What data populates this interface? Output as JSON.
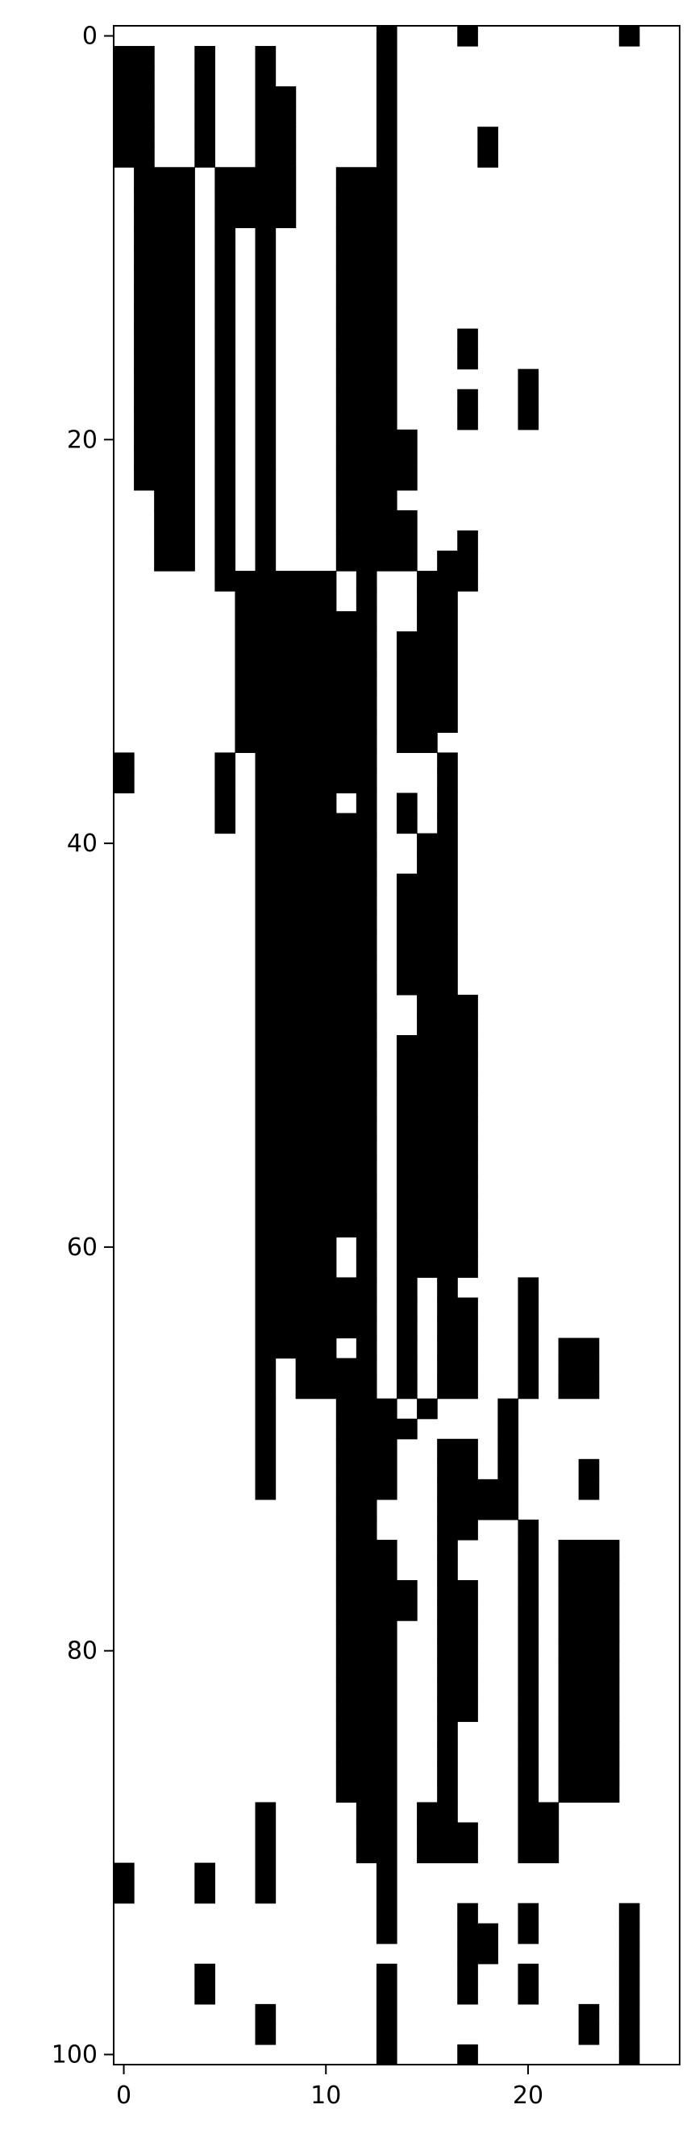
{
  "chart_data": {
    "type": "heatmap",
    "colormap": "binary",
    "colors": {
      "on": "#000000",
      "off": "#ffffff",
      "axis": "#000000"
    },
    "grid": false,
    "xlim": [
      -0.5,
      27.5
    ],
    "ylim": [
      100.5,
      -0.5
    ],
    "x_ticks": [
      {
        "value": 0,
        "label": "0"
      },
      {
        "value": 10,
        "label": "10"
      },
      {
        "value": 20,
        "label": "20"
      }
    ],
    "y_ticks": [
      {
        "value": 0,
        "label": "0"
      },
      {
        "value": 20,
        "label": "20"
      },
      {
        "value": 40,
        "label": "40"
      },
      {
        "value": 60,
        "label": "60"
      },
      {
        "value": 80,
        "label": "80"
      },
      {
        "value": 100,
        "label": "100"
      }
    ],
    "n_cols": 28,
    "n_rows": 101,
    "black_runs": [
      [
        [
          13,
          13
        ],
        [
          17,
          17
        ],
        [
          25,
          25
        ]
      ],
      [
        [
          0,
          1
        ],
        [
          4,
          4
        ],
        [
          7,
          7
        ],
        [
          13,
          13
        ]
      ],
      [
        [
          0,
          1
        ],
        [
          4,
          4
        ],
        [
          7,
          7
        ],
        [
          13,
          13
        ]
      ],
      [
        [
          0,
          1
        ],
        [
          4,
          4
        ],
        [
          7,
          8
        ],
        [
          13,
          13
        ]
      ],
      [
        [
          0,
          1
        ],
        [
          4,
          4
        ],
        [
          7,
          8
        ],
        [
          13,
          13
        ]
      ],
      [
        [
          0,
          1
        ],
        [
          4,
          4
        ],
        [
          7,
          8
        ],
        [
          13,
          13
        ],
        [
          18,
          18
        ]
      ],
      [
        [
          0,
          1
        ],
        [
          4,
          4
        ],
        [
          7,
          8
        ],
        [
          13,
          13
        ],
        [
          18,
          18
        ]
      ],
      [
        [
          1,
          3
        ],
        [
          5,
          8
        ],
        [
          11,
          13
        ]
      ],
      [
        [
          1,
          3
        ],
        [
          5,
          8
        ],
        [
          11,
          13
        ]
      ],
      [
        [
          1,
          3
        ],
        [
          5,
          8
        ],
        [
          11,
          13
        ]
      ],
      [
        [
          1,
          3
        ],
        [
          5,
          5
        ],
        [
          7,
          7
        ],
        [
          11,
          13
        ]
      ],
      [
        [
          1,
          3
        ],
        [
          5,
          5
        ],
        [
          7,
          7
        ],
        [
          11,
          13
        ]
      ],
      [
        [
          1,
          3
        ],
        [
          5,
          5
        ],
        [
          7,
          7
        ],
        [
          11,
          13
        ]
      ],
      [
        [
          1,
          3
        ],
        [
          5,
          5
        ],
        [
          7,
          7
        ],
        [
          11,
          13
        ]
      ],
      [
        [
          1,
          3
        ],
        [
          5,
          5
        ],
        [
          7,
          7
        ],
        [
          11,
          13
        ]
      ],
      [
        [
          1,
          3
        ],
        [
          5,
          5
        ],
        [
          7,
          7
        ],
        [
          11,
          13
        ],
        [
          17,
          17
        ]
      ],
      [
        [
          1,
          3
        ],
        [
          5,
          5
        ],
        [
          7,
          7
        ],
        [
          11,
          13
        ],
        [
          17,
          17
        ]
      ],
      [
        [
          1,
          3
        ],
        [
          5,
          5
        ],
        [
          7,
          7
        ],
        [
          11,
          13
        ],
        [
          20,
          20
        ]
      ],
      [
        [
          1,
          3
        ],
        [
          5,
          5
        ],
        [
          7,
          7
        ],
        [
          11,
          13
        ],
        [
          17,
          17
        ],
        [
          20,
          20
        ]
      ],
      [
        [
          1,
          3
        ],
        [
          5,
          5
        ],
        [
          7,
          7
        ],
        [
          11,
          13
        ],
        [
          17,
          17
        ],
        [
          20,
          20
        ]
      ],
      [
        [
          1,
          3
        ],
        [
          5,
          5
        ],
        [
          7,
          7
        ],
        [
          11,
          14
        ]
      ],
      [
        [
          1,
          3
        ],
        [
          5,
          5
        ],
        [
          7,
          7
        ],
        [
          11,
          14
        ]
      ],
      [
        [
          1,
          3
        ],
        [
          5,
          5
        ],
        [
          7,
          7
        ],
        [
          11,
          14
        ]
      ],
      [
        [
          2,
          3
        ],
        [
          5,
          5
        ],
        [
          7,
          7
        ],
        [
          11,
          13
        ]
      ],
      [
        [
          2,
          3
        ],
        [
          5,
          5
        ],
        [
          7,
          7
        ],
        [
          11,
          14
        ]
      ],
      [
        [
          2,
          3
        ],
        [
          5,
          5
        ],
        [
          7,
          7
        ],
        [
          11,
          14
        ],
        [
          17,
          17
        ]
      ],
      [
        [
          2,
          3
        ],
        [
          5,
          5
        ],
        [
          7,
          7
        ],
        [
          11,
          14
        ],
        [
          16,
          17
        ]
      ],
      [
        [
          5,
          10
        ],
        [
          12,
          12
        ],
        [
          15,
          17
        ]
      ],
      [
        [
          6,
          10
        ],
        [
          12,
          12
        ],
        [
          15,
          16
        ]
      ],
      [
        [
          6,
          12
        ],
        [
          15,
          16
        ]
      ],
      [
        [
          6,
          12
        ],
        [
          14,
          16
        ]
      ],
      [
        [
          6,
          12
        ],
        [
          14,
          16
        ]
      ],
      [
        [
          6,
          12
        ],
        [
          14,
          16
        ]
      ],
      [
        [
          6,
          12
        ],
        [
          14,
          16
        ]
      ],
      [
        [
          6,
          12
        ],
        [
          14,
          16
        ]
      ],
      [
        [
          6,
          12
        ],
        [
          14,
          15
        ]
      ],
      [
        [
          0,
          0
        ],
        [
          5,
          5
        ],
        [
          7,
          12
        ],
        [
          16,
          16
        ]
      ],
      [
        [
          0,
          0
        ],
        [
          5,
          5
        ],
        [
          7,
          12
        ],
        [
          16,
          16
        ]
      ],
      [
        [
          5,
          5
        ],
        [
          7,
          10
        ],
        [
          12,
          12
        ],
        [
          14,
          14
        ],
        [
          16,
          16
        ]
      ],
      [
        [
          5,
          5
        ],
        [
          7,
          12
        ],
        [
          14,
          14
        ],
        [
          16,
          16
        ]
      ],
      [
        [
          7,
          12
        ],
        [
          15,
          16
        ]
      ],
      [
        [
          7,
          12
        ],
        [
          15,
          16
        ]
      ],
      [
        [
          7,
          12
        ],
        [
          14,
          16
        ]
      ],
      [
        [
          7,
          12
        ],
        [
          14,
          16
        ]
      ],
      [
        [
          7,
          12
        ],
        [
          14,
          16
        ]
      ],
      [
        [
          7,
          12
        ],
        [
          14,
          16
        ]
      ],
      [
        [
          7,
          12
        ],
        [
          14,
          16
        ]
      ],
      [
        [
          7,
          12
        ],
        [
          14,
          16
        ]
      ],
      [
        [
          7,
          12
        ],
        [
          15,
          17
        ]
      ],
      [
        [
          7,
          12
        ],
        [
          15,
          17
        ]
      ],
      [
        [
          7,
          12
        ],
        [
          14,
          17
        ]
      ],
      [
        [
          7,
          12
        ],
        [
          14,
          17
        ]
      ],
      [
        [
          7,
          12
        ],
        [
          14,
          17
        ]
      ],
      [
        [
          7,
          12
        ],
        [
          14,
          17
        ]
      ],
      [
        [
          7,
          12
        ],
        [
          14,
          17
        ]
      ],
      [
        [
          7,
          12
        ],
        [
          14,
          17
        ]
      ],
      [
        [
          7,
          12
        ],
        [
          14,
          17
        ]
      ],
      [
        [
          7,
          12
        ],
        [
          14,
          17
        ]
      ],
      [
        [
          7,
          12
        ],
        [
          14,
          17
        ]
      ],
      [
        [
          7,
          12
        ],
        [
          14,
          17
        ]
      ],
      [
        [
          7,
          10
        ],
        [
          12,
          12
        ],
        [
          14,
          17
        ]
      ],
      [
        [
          7,
          10
        ],
        [
          12,
          12
        ],
        [
          14,
          17
        ]
      ],
      [
        [
          7,
          12
        ],
        [
          14,
          14
        ],
        [
          16,
          16
        ],
        [
          20,
          20
        ]
      ],
      [
        [
          7,
          12
        ],
        [
          14,
          14
        ],
        [
          16,
          17
        ],
        [
          20,
          20
        ]
      ],
      [
        [
          7,
          12
        ],
        [
          14,
          14
        ],
        [
          16,
          17
        ],
        [
          20,
          20
        ]
      ],
      [
        [
          7,
          10
        ],
        [
          12,
          12
        ],
        [
          14,
          14
        ],
        [
          16,
          17
        ],
        [
          20,
          20
        ],
        [
          22,
          23
        ]
      ],
      [
        [
          7,
          7
        ],
        [
          9,
          12
        ],
        [
          14,
          14
        ],
        [
          16,
          17
        ],
        [
          20,
          20
        ],
        [
          22,
          23
        ]
      ],
      [
        [
          7,
          7
        ],
        [
          9,
          12
        ],
        [
          14,
          14
        ],
        [
          16,
          17
        ],
        [
          20,
          20
        ],
        [
          22,
          23
        ]
      ],
      [
        [
          7,
          7
        ],
        [
          11,
          13
        ],
        [
          15,
          15
        ],
        [
          19,
          19
        ]
      ],
      [
        [
          7,
          7
        ],
        [
          11,
          14
        ],
        [
          19,
          19
        ]
      ],
      [
        [
          7,
          7
        ],
        [
          11,
          13
        ],
        [
          16,
          17
        ],
        [
          19,
          19
        ]
      ],
      [
        [
          7,
          7
        ],
        [
          11,
          13
        ],
        [
          16,
          17
        ],
        [
          19,
          19
        ],
        [
          23,
          23
        ]
      ],
      [
        [
          7,
          7
        ],
        [
          11,
          13
        ],
        [
          16,
          19
        ],
        [
          23,
          23
        ]
      ],
      [
        [
          11,
          12
        ],
        [
          16,
          19
        ]
      ],
      [
        [
          11,
          12
        ],
        [
          16,
          17
        ],
        [
          20,
          20
        ]
      ],
      [
        [
          11,
          13
        ],
        [
          16,
          16
        ],
        [
          20,
          20
        ],
        [
          22,
          24
        ]
      ],
      [
        [
          11,
          13
        ],
        [
          16,
          16
        ],
        [
          20,
          20
        ],
        [
          22,
          24
        ]
      ],
      [
        [
          11,
          14
        ],
        [
          16,
          17
        ],
        [
          20,
          20
        ],
        [
          22,
          24
        ]
      ],
      [
        [
          11,
          14
        ],
        [
          16,
          17
        ],
        [
          20,
          20
        ],
        [
          22,
          24
        ]
      ],
      [
        [
          11,
          13
        ],
        [
          16,
          17
        ],
        [
          20,
          20
        ],
        [
          22,
          24
        ]
      ],
      [
        [
          11,
          13
        ],
        [
          16,
          17
        ],
        [
          20,
          20
        ],
        [
          22,
          24
        ]
      ],
      [
        [
          11,
          13
        ],
        [
          16,
          17
        ],
        [
          20,
          20
        ],
        [
          22,
          24
        ]
      ],
      [
        [
          11,
          13
        ],
        [
          16,
          17
        ],
        [
          20,
          20
        ],
        [
          22,
          24
        ]
      ],
      [
        [
          11,
          13
        ],
        [
          16,
          17
        ],
        [
          20,
          20
        ],
        [
          22,
          24
        ]
      ],
      [
        [
          11,
          13
        ],
        [
          16,
          16
        ],
        [
          20,
          20
        ],
        [
          22,
          24
        ]
      ],
      [
        [
          11,
          13
        ],
        [
          16,
          16
        ],
        [
          20,
          20
        ],
        [
          22,
          24
        ]
      ],
      [
        [
          11,
          13
        ],
        [
          16,
          16
        ],
        [
          20,
          20
        ],
        [
          22,
          24
        ]
      ],
      [
        [
          11,
          13
        ],
        [
          16,
          16
        ],
        [
          20,
          20
        ],
        [
          22,
          24
        ]
      ],
      [
        [
          7,
          7
        ],
        [
          12,
          13
        ],
        [
          15,
          16
        ],
        [
          20,
          21
        ]
      ],
      [
        [
          7,
          7
        ],
        [
          12,
          13
        ],
        [
          15,
          17
        ],
        [
          20,
          21
        ]
      ],
      [
        [
          7,
          7
        ],
        [
          12,
          13
        ],
        [
          15,
          17
        ],
        [
          20,
          21
        ]
      ],
      [
        [
          0,
          0
        ],
        [
          4,
          4
        ],
        [
          7,
          7
        ],
        [
          13,
          13
        ]
      ],
      [
        [
          0,
          0
        ],
        [
          4,
          4
        ],
        [
          7,
          7
        ],
        [
          13,
          13
        ]
      ],
      [
        [
          13,
          13
        ],
        [
          17,
          17
        ],
        [
          20,
          20
        ],
        [
          25,
          25
        ]
      ],
      [
        [
          13,
          13
        ],
        [
          17,
          18
        ],
        [
          20,
          20
        ],
        [
          25,
          25
        ]
      ],
      [
        [
          17,
          18
        ],
        [
          25,
          25
        ]
      ],
      [
        [
          4,
          4
        ],
        [
          13,
          13
        ],
        [
          17,
          17
        ],
        [
          20,
          20
        ],
        [
          25,
          25
        ]
      ],
      [
        [
          4,
          4
        ],
        [
          13,
          13
        ],
        [
          17,
          17
        ],
        [
          20,
          20
        ],
        [
          25,
          25
        ]
      ],
      [
        [
          7,
          7
        ],
        [
          13,
          13
        ],
        [
          23,
          23
        ],
        [
          25,
          25
        ]
      ],
      [
        [
          7,
          7
        ],
        [
          13,
          13
        ],
        [
          23,
          23
        ],
        [
          25,
          25
        ]
      ],
      [
        [
          13,
          13
        ],
        [
          17,
          17
        ],
        [
          25,
          25
        ]
      ]
    ]
  }
}
